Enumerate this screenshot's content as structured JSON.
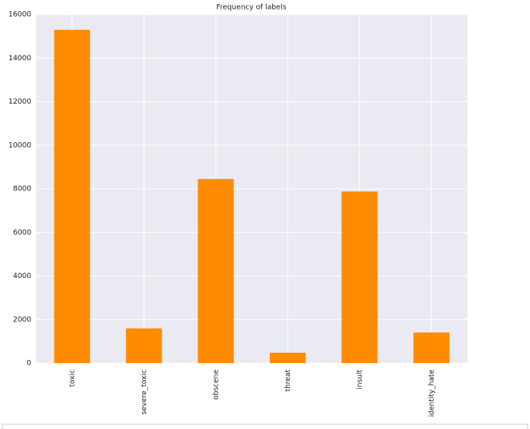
{
  "chart_data": {
    "type": "bar",
    "title": "Frequency of labels",
    "categories": [
      "toxic",
      "severe_toxic",
      "obscene",
      "threat",
      "insult",
      "identity_hate"
    ],
    "values": [
      15294,
      1595,
      8449,
      478,
      7877,
      1405
    ],
    "color": "#ff8c00",
    "ylim": [
      0,
      16000
    ],
    "yticks": [
      0,
      2000,
      4000,
      6000,
      8000,
      10000,
      12000,
      14000,
      16000
    ],
    "grid": true
  }
}
